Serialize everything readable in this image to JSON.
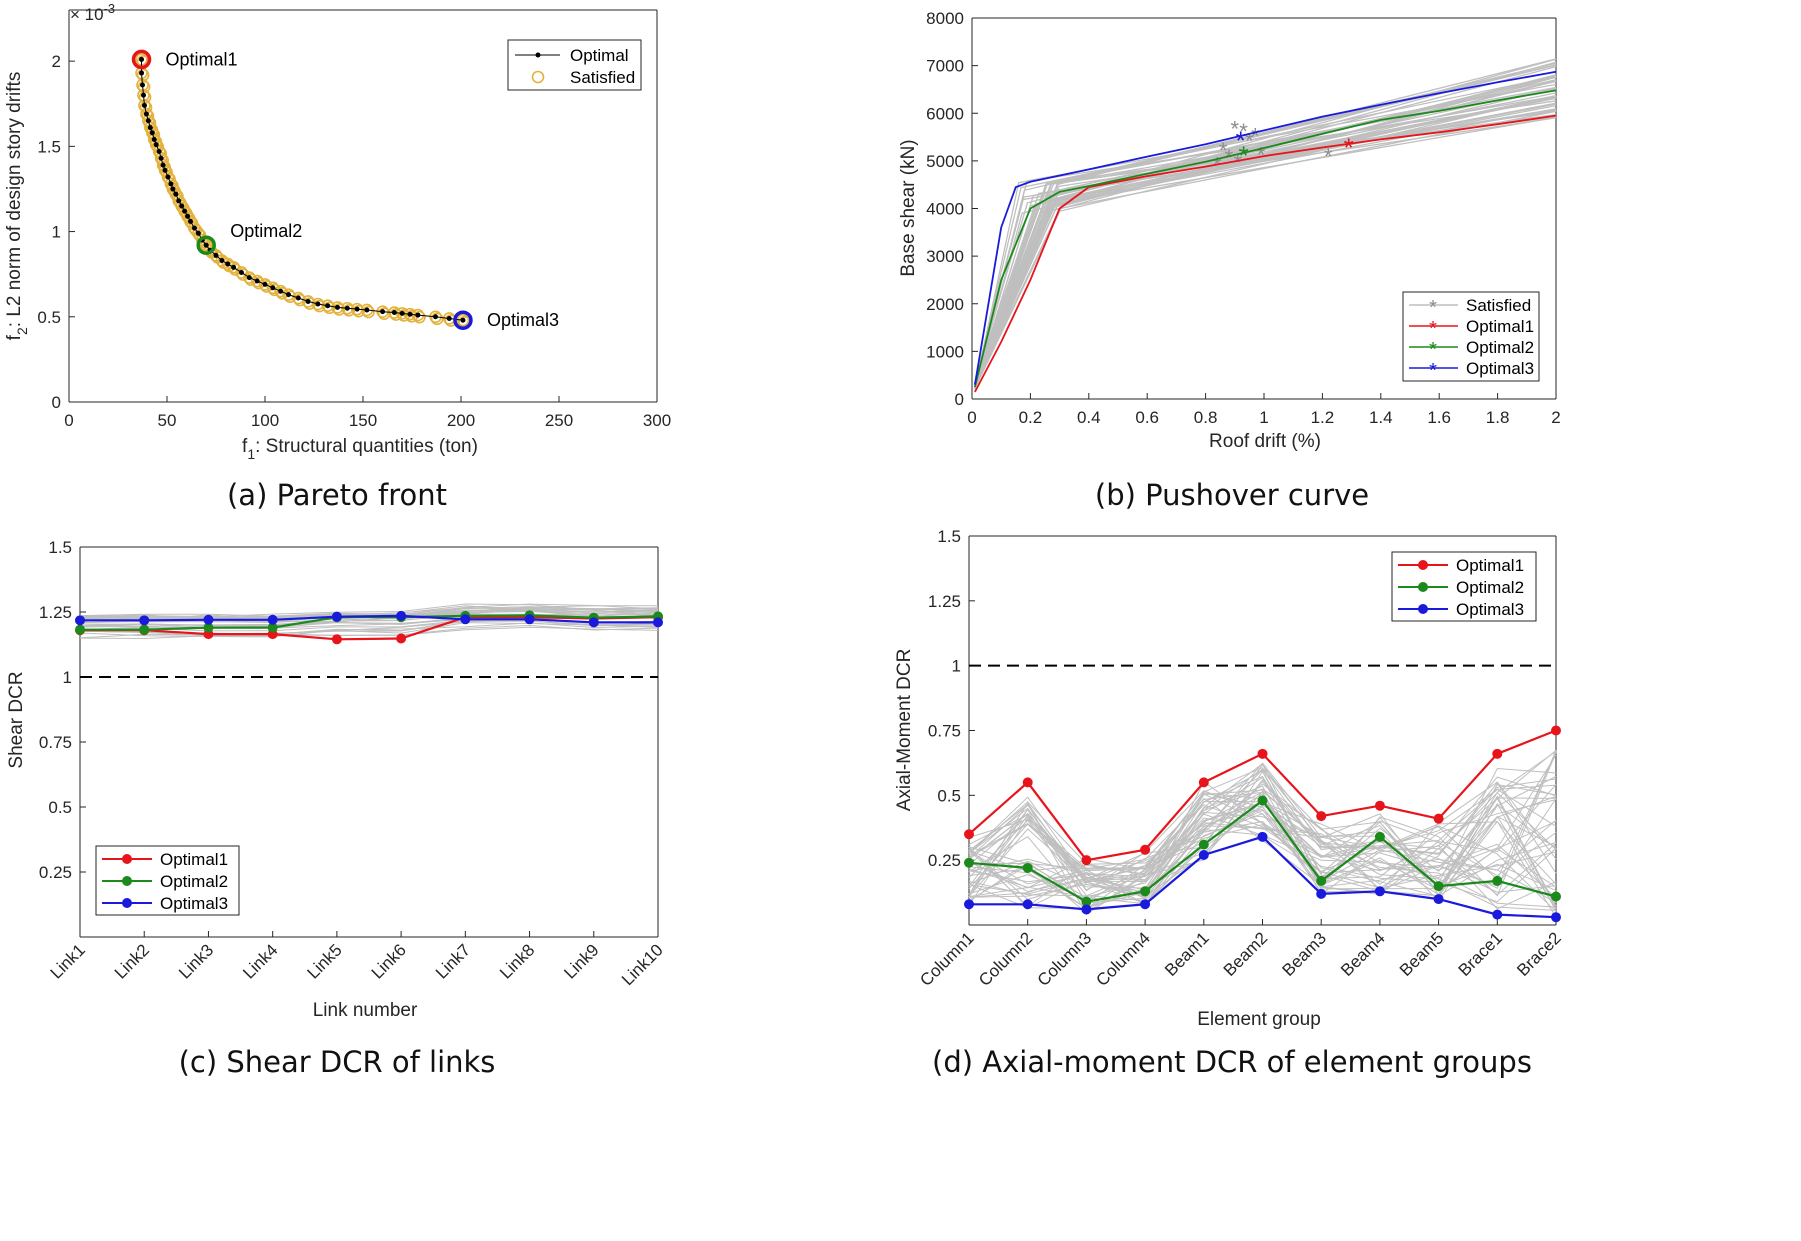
{
  "colors": {
    "red": "#e8141b",
    "green": "#1b8a1b",
    "blue": "#1a1adc",
    "gray": "#bfbfbf",
    "gold": "#e3b23c",
    "black": "#000000"
  },
  "chart_data": [
    {
      "type": "scatter",
      "caption": "(a) Pareto front",
      "xlabel_pre": "f",
      "xlabel_sub": "1",
      "xlabel_post": ": Structural quantities (ton)",
      "ylabel_pre": "f",
      "ylabel_sub": "2",
      "ylabel_post": ": L2 norm of design story drifts",
      "yexp_pre": "× 10",
      "yexp_sup": "-3",
      "xlim": [
        0,
        300
      ],
      "ylim": [
        0,
        2.3
      ],
      "xticks": [
        0,
        50,
        100,
        150,
        200,
        250,
        300
      ],
      "yticks": [
        0,
        0.5,
        1,
        1.5,
        2
      ],
      "ytick_labels": [
        "0",
        "0.5",
        "1",
        "1.5",
        "2"
      ],
      "legend_position": "top-right",
      "legend": [
        "Optimal",
        "Satisfied"
      ],
      "pareto": [
        [
          37,
          2.01
        ],
        [
          37,
          1.93
        ],
        [
          37.5,
          1.86
        ],
        [
          38,
          1.8
        ],
        [
          38.5,
          1.74
        ],
        [
          39.5,
          1.69
        ],
        [
          40.5,
          1.65
        ],
        [
          41.5,
          1.61
        ],
        [
          42.5,
          1.58
        ],
        [
          43.5,
          1.54
        ],
        [
          44.5,
          1.51
        ],
        [
          46,
          1.47
        ],
        [
          47,
          1.43
        ],
        [
          48,
          1.39
        ],
        [
          49,
          1.36
        ],
        [
          50.5,
          1.32
        ],
        [
          52,
          1.28
        ],
        [
          53,
          1.25
        ],
        [
          54.5,
          1.22
        ],
        [
          56,
          1.18
        ],
        [
          57.5,
          1.15
        ],
        [
          59,
          1.12
        ],
        [
          60.5,
          1.09
        ],
        [
          62,
          1.06
        ],
        [
          64,
          1.02
        ],
        [
          66,
          0.99
        ],
        [
          68,
          0.95
        ],
        [
          70,
          0.92
        ],
        [
          72,
          0.89
        ],
        [
          75,
          0.86
        ],
        [
          78,
          0.83
        ],
        [
          81,
          0.81
        ],
        [
          84,
          0.79
        ],
        [
          88,
          0.76
        ],
        [
          92,
          0.73
        ],
        [
          96,
          0.71
        ],
        [
          100,
          0.69
        ],
        [
          104,
          0.67
        ],
        [
          108,
          0.65
        ],
        [
          112,
          0.63
        ],
        [
          117,
          0.61
        ],
        [
          122,
          0.59
        ],
        [
          127,
          0.575
        ],
        [
          132,
          0.565
        ],
        [
          137,
          0.555
        ],
        [
          142,
          0.55
        ],
        [
          147,
          0.545
        ],
        [
          152,
          0.54
        ],
        [
          160,
          0.53
        ],
        [
          166,
          0.525
        ],
        [
          170,
          0.52
        ],
        [
          174,
          0.515
        ],
        [
          178,
          0.51
        ],
        [
          187,
          0.5
        ],
        [
          194,
          0.49
        ],
        [
          201,
          0.48
        ]
      ],
      "annotations": [
        {
          "label": "Optimal1",
          "x": 37,
          "y": 2.01,
          "color": "#e8141b"
        },
        {
          "label": "Optimal2",
          "x": 70,
          "y": 0.92,
          "color": "#1b8a1b"
        },
        {
          "label": "Optimal3",
          "x": 201,
          "y": 0.48,
          "color": "#1a1adc"
        }
      ]
    },
    {
      "type": "line",
      "caption": "(b) Pushover curve",
      "xlabel": "Roof drift (%)",
      "ylabel": "Base shear (kN)",
      "xlim": [
        0,
        2
      ],
      "ylim": [
        0,
        8000
      ],
      "xticks": [
        0,
        0.2,
        0.4,
        0.6,
        0.8,
        1,
        1.2,
        1.4,
        1.6,
        1.8,
        2
      ],
      "xtick_labels": [
        "0",
        "0.2",
        "0.4",
        "0.6",
        "0.8",
        "1",
        "1.2",
        "1.4",
        "1.6",
        "1.8",
        "2"
      ],
      "yticks": [
        0,
        1000,
        2000,
        3000,
        4000,
        5000,
        6000,
        7000,
        8000
      ],
      "legend_position": "bottom-right",
      "legend": [
        "Satisfied",
        "Optimal1",
        "Optimal2",
        "Optimal3"
      ],
      "series": [
        {
          "name": "Optimal1",
          "color": "#e8141b",
          "x": [
            0.01,
            0.1,
            0.2,
            0.3,
            0.4,
            0.6,
            0.8,
            1.0,
            1.2,
            1.4,
            1.6,
            1.8,
            2.0
          ],
          "y": [
            150,
            1200,
            2500,
            4000,
            4450,
            4680,
            4880,
            5100,
            5280,
            5450,
            5600,
            5770,
            5950
          ],
          "marker": [
            1.29,
            5300
          ]
        },
        {
          "name": "Optimal2",
          "color": "#1b8a1b",
          "x": [
            0.01,
            0.1,
            0.2,
            0.3,
            0.4,
            0.6,
            0.8,
            1.0,
            1.2,
            1.4,
            1.6,
            1.8,
            2.0
          ],
          "y": [
            250,
            2500,
            4000,
            4350,
            4470,
            4730,
            4980,
            5270,
            5570,
            5860,
            6050,
            6270,
            6480
          ],
          "marker": [
            0.93,
            5130
          ]
        },
        {
          "name": "Optimal3",
          "color": "#1a1adc",
          "x": [
            0.01,
            0.1,
            0.15,
            0.2,
            0.4,
            0.6,
            0.8,
            1.0,
            1.2,
            1.4,
            1.6,
            1.8,
            2.0
          ],
          "y": [
            300,
            3600,
            4450,
            4560,
            4820,
            5090,
            5350,
            5640,
            5930,
            6180,
            6420,
            6650,
            6870
          ],
          "marker": [
            0.92,
            5450
          ]
        }
      ],
      "satisfied_markers": [
        [
          0.84,
          4950
        ],
        [
          0.88,
          5100
        ],
        [
          0.91,
          5000
        ],
        [
          0.93,
          5650
        ],
        [
          0.95,
          5450
        ],
        [
          0.97,
          5550
        ],
        [
          0.99,
          5150
        ],
        [
          1.22,
          5120
        ],
        [
          0.9,
          5700
        ],
        [
          0.86,
          5250
        ]
      ]
    },
    {
      "type": "line",
      "caption": "(c) Shear DCR of links",
      "xlabel": "Link number",
      "ylabel": "Shear DCR",
      "ylim": [
        0,
        1.5
      ],
      "yticks": [
        0.25,
        0.5,
        0.75,
        1,
        1.25,
        1.5
      ],
      "ytick_labels": [
        "0.25",
        "0.5",
        "0.75",
        "1",
        "1.25",
        "1.5"
      ],
      "categories": [
        "Link1",
        "Link2",
        "Link3",
        "Link4",
        "Link5",
        "Link6",
        "Link7",
        "Link8",
        "Link9",
        "Link10"
      ],
      "reference_line": 1,
      "legend_position": "bottom-left",
      "legend": [
        "Optimal1",
        "Optimal2",
        "Optimal3"
      ],
      "series": [
        {
          "name": "Optimal1",
          "color": "#e8141b",
          "values": [
            1.18,
            1.18,
            1.165,
            1.165,
            1.145,
            1.148,
            1.23,
            1.23,
            1.225,
            1.23
          ]
        },
        {
          "name": "Optimal2",
          "color": "#1b8a1b",
          "values": [
            1.182,
            1.182,
            1.19,
            1.19,
            1.23,
            1.23,
            1.235,
            1.237,
            1.228,
            1.233
          ]
        },
        {
          "name": "Optimal3",
          "color": "#1a1adc",
          "values": [
            1.218,
            1.218,
            1.22,
            1.22,
            1.232,
            1.235,
            1.222,
            1.222,
            1.21,
            1.21
          ]
        }
      ]
    },
    {
      "type": "line",
      "caption": "(d) Axial-moment DCR of element groups",
      "xlabel": "Element group",
      "ylabel": "Axial-Moment DCR",
      "ylim": [
        0,
        1.5
      ],
      "yticks": [
        0.25,
        0.5,
        0.75,
        1,
        1.25,
        1.5
      ],
      "ytick_labels": [
        "0.25",
        "0.5",
        "0.75",
        "1",
        "1.25",
        "1.5"
      ],
      "categories": [
        "Column1",
        "Column2",
        "Column3",
        "Column4",
        "Beam1",
        "Beam2",
        "Beam3",
        "Beam4",
        "Beam5",
        "Brace1",
        "Brace2"
      ],
      "reference_line": 1,
      "legend_position": "top-right",
      "legend": [
        "Optimal1",
        "Optimal2",
        "Optimal3"
      ],
      "series": [
        {
          "name": "Optimal1",
          "color": "#e8141b",
          "values": [
            0.35,
            0.55,
            0.25,
            0.29,
            0.55,
            0.66,
            0.42,
            0.46,
            0.41,
            0.66,
            0.75
          ]
        },
        {
          "name": "Optimal2",
          "color": "#1b8a1b",
          "values": [
            0.24,
            0.22,
            0.09,
            0.13,
            0.31,
            0.48,
            0.17,
            0.34,
            0.15,
            0.17,
            0.11
          ]
        },
        {
          "name": "Optimal3",
          "color": "#1a1adc",
          "values": [
            0.08,
            0.08,
            0.06,
            0.08,
            0.27,
            0.34,
            0.12,
            0.13,
            0.1,
            0.04,
            0.03
          ]
        }
      ]
    }
  ]
}
